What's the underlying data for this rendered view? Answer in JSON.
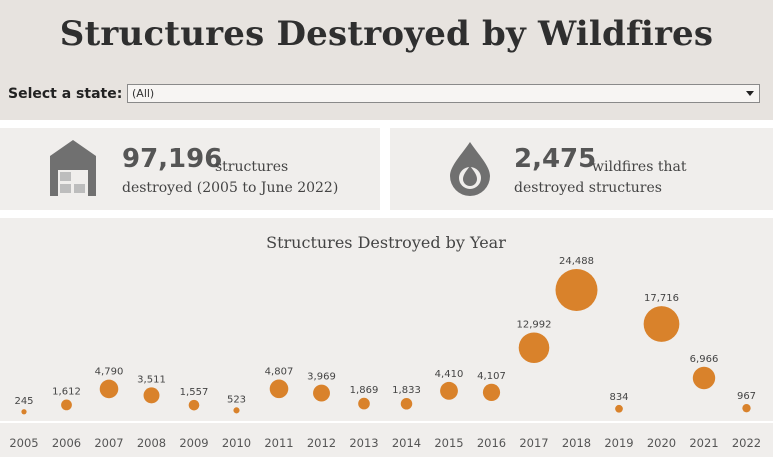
{
  "header": {
    "title": "Structures Destroyed by Wildfires",
    "filter_label": "Select a state:",
    "filter_value": "(All)"
  },
  "kpis": {
    "structures": {
      "number": "97,196",
      "text1": "structures",
      "text2": "destroyed (2005 to June 2022)",
      "icon": "building-icon"
    },
    "wildfires": {
      "number": "2,475",
      "text1": "wildfires that",
      "text2": "destroyed structures",
      "icon": "fire-drop-icon"
    }
  },
  "colors": {
    "bubble": "#d9822b",
    "icon": "#707070"
  },
  "chart_data": {
    "type": "scatter",
    "title": "Structures Destroyed by Year",
    "x": [
      "2005",
      "2006",
      "2007",
      "2008",
      "2009",
      "2010",
      "2011",
      "2012",
      "2013",
      "2014",
      "2015",
      "2016",
      "2017",
      "2018",
      "2019",
      "2020",
      "2021",
      "2022"
    ],
    "values": [
      245,
      1612,
      4790,
      3511,
      1557,
      523,
      4807,
      3969,
      1869,
      1833,
      4410,
      4107,
      12992,
      24488,
      834,
      17716,
      6966,
      967
    ],
    "labels": [
      "245",
      "1,612",
      "4,790",
      "3,511",
      "1,557",
      "523",
      "4,807",
      "3,969",
      "1,869",
      "1,833",
      "4,410",
      "4,107",
      "12,992",
      "24,488",
      "834",
      "17,716",
      "6,966",
      "967"
    ],
    "encoding": "bubble size and vertical position proportional to value",
    "grid": false,
    "legend": "none"
  }
}
